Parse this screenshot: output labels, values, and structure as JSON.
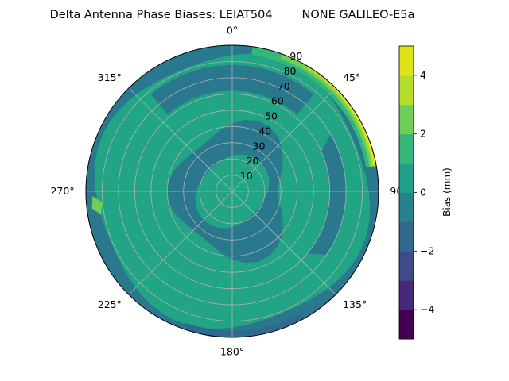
{
  "chart_data": {
    "type": "heatmap",
    "projection": "polar",
    "title": "Delta Antenna Phase Biases: LEIAT504        NONE GALILEO-E5a",
    "theta_zero": "top",
    "theta_direction": "clockwise",
    "theta_tick_labels": [
      "0°",
      "45°",
      "90°",
      "135°",
      "180°",
      "225°",
      "270°",
      "315°"
    ],
    "theta_tick_values": [
      0,
      45,
      90,
      135,
      180,
      225,
      270,
      315
    ],
    "r_tick_labels": [
      "10",
      "20",
      "30",
      "40",
      "50",
      "60",
      "70",
      "80",
      "90"
    ],
    "r_tick_values": [
      10,
      20,
      30,
      40,
      50,
      60,
      70,
      80,
      90
    ],
    "rlim": [
      0,
      90
    ],
    "grid": true,
    "colorbar": {
      "label": "Bias (mm)",
      "levels": [
        -5,
        -4,
        -3,
        -2,
        -1,
        0,
        1,
        2,
        3,
        4,
        5
      ],
      "tick_values": [
        -4,
        -2,
        0,
        2,
        4
      ],
      "tick_labels": [
        "−4",
        "−2",
        "0",
        "2",
        "4"
      ],
      "colors": [
        "#471365",
        "#472f7d",
        "#3e4989",
        "#31688e",
        "#277f8e",
        "#26828e",
        "#1f9e89",
        "#35b779",
        "#6ece58",
        "#b5de2b",
        "#fde725"
      ],
      "band_colors": [
        "#440154",
        "#482878",
        "#3e4a89",
        "#31688e",
        "#26828e",
        "#1f9e89",
        "#35b779",
        "#6ece58",
        "#b5de2b",
        "#dfe318"
      ]
    },
    "contour_regions": [
      {
        "level_range": [
          0,
          1
        ],
        "description": "background"
      },
      {
        "level_range": [
          -1,
          0
        ],
        "region": "inner ring band"
      },
      {
        "level_range": [
          2,
          3
        ],
        "region": "outer north-east rim"
      },
      {
        "level_range": [
          3,
          5
        ],
        "region": "rim north-east"
      }
    ]
  }
}
